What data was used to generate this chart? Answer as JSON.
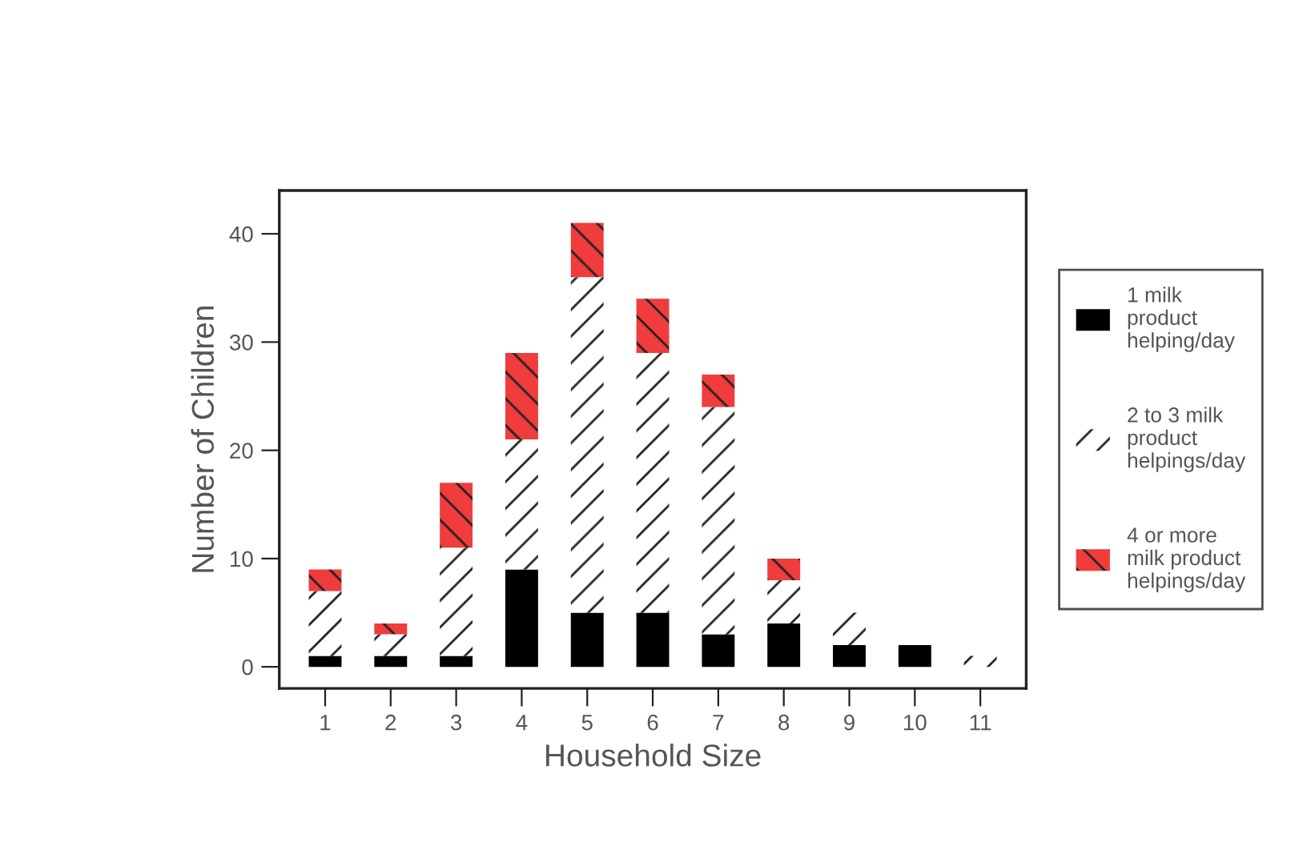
{
  "chart_data": {
    "type": "bar",
    "stacked": true,
    "xlabel": "Household Size",
    "ylabel": "Number of Children",
    "categories": [
      "1",
      "2",
      "3",
      "4",
      "5",
      "6",
      "7",
      "8",
      "9",
      "10",
      "11"
    ],
    "series": [
      {
        "name": "1 milk product helping/day",
        "color": "#000000",
        "values": [
          1,
          1,
          1,
          9,
          5,
          5,
          3,
          4,
          2,
          2,
          0
        ]
      },
      {
        "name": "2 to 3 milk product helpings/day",
        "color": "#ffffff",
        "values": [
          6,
          2,
          10,
          12,
          31,
          24,
          21,
          4,
          3,
          0,
          1
        ]
      },
      {
        "name": "4 or more milk product helpings/day",
        "color": "#f03c3c",
        "values": [
          2,
          1,
          6,
          8,
          5,
          5,
          3,
          2,
          0,
          0,
          0
        ]
      }
    ],
    "ylim": [
      -2,
      44
    ],
    "yticks": [
      0,
      10,
      20,
      30,
      40
    ],
    "grid": false,
    "legend": "right"
  }
}
